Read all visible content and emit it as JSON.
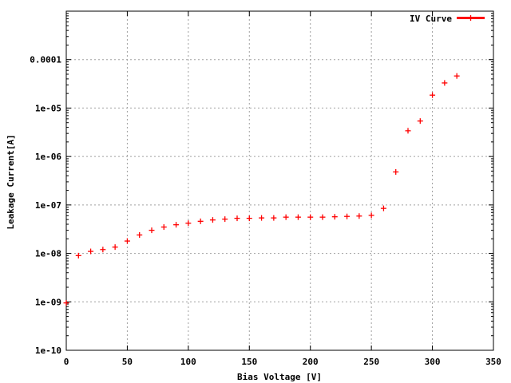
{
  "chart_data": {
    "type": "scatter",
    "title": "",
    "xlabel": "Bias Voltage [V]",
    "ylabel": "Leakage Current[A]",
    "xlim": [
      0,
      350
    ],
    "ylim": [
      1e-10,
      0.001
    ],
    "yscale": "log",
    "grid": true,
    "legend_position": "top-right",
    "x_ticks": [
      {
        "value": 0,
        "label": "0"
      },
      {
        "value": 50,
        "label": "50"
      },
      {
        "value": 100,
        "label": "100"
      },
      {
        "value": 150,
        "label": "150"
      },
      {
        "value": 200,
        "label": "200"
      },
      {
        "value": 250,
        "label": "250"
      },
      {
        "value": 300,
        "label": "300"
      },
      {
        "value": 350,
        "label": "350"
      }
    ],
    "y_ticks": [
      {
        "value": 1e-10,
        "label": "1e-10"
      },
      {
        "value": 1e-09,
        "label": "1e-09"
      },
      {
        "value": 1e-08,
        "label": "1e-08"
      },
      {
        "value": 1e-07,
        "label": "1e-07"
      },
      {
        "value": 1e-06,
        "label": "1e-06"
      },
      {
        "value": 1e-05,
        "label": "1e-05"
      },
      {
        "value": 0.0001,
        "label": "0.0001"
      }
    ],
    "series": [
      {
        "name": "IV Curve",
        "color": "#ff0000",
        "marker": "plus",
        "x": [
          0,
          10,
          20,
          30,
          40,
          50,
          60,
          70,
          80,
          90,
          100,
          110,
          120,
          130,
          140,
          150,
          160,
          170,
          180,
          190,
          200,
          210,
          220,
          230,
          240,
          250,
          260,
          270,
          280,
          290,
          300,
          310,
          320
        ],
        "y": [
          9.5e-10,
          9e-09,
          1.1e-08,
          1.2e-08,
          1.35e-08,
          1.8e-08,
          2.4e-08,
          3e-08,
          3.5e-08,
          3.9e-08,
          4.2e-08,
          4.6e-08,
          4.9e-08,
          5.1e-08,
          5.3e-08,
          5.3e-08,
          5.4e-08,
          5.4e-08,
          5.6e-08,
          5.6e-08,
          5.6e-08,
          5.6e-08,
          5.7e-08,
          5.8e-08,
          5.9e-08,
          6.1e-08,
          8.5e-08,
          4.8e-07,
          3.4e-06,
          5.4e-06,
          1.85e-05,
          3.3e-05,
          4.6e-05
        ]
      }
    ]
  }
}
